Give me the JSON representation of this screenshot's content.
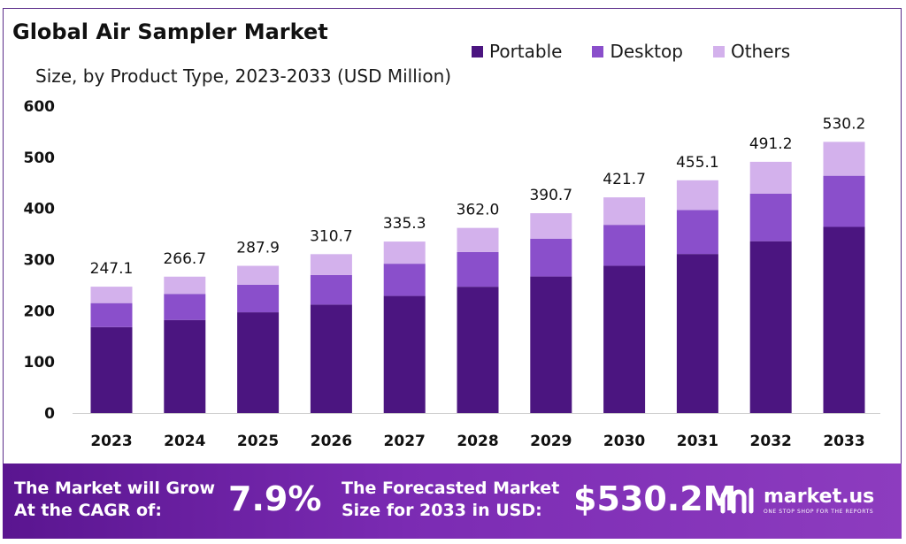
{
  "header": {
    "title": "Global Air Sampler Market",
    "subtitle": "Size, by Product Type, 2023-2033 (USD Million)"
  },
  "legend": [
    {
      "label": "Portable",
      "color": "#4b1580"
    },
    {
      "label": "Desktop",
      "color": "#8a4fcb"
    },
    {
      "label": "Others",
      "color": "#d3b1ec"
    }
  ],
  "chart_data": {
    "type": "bar",
    "stacked": true,
    "title": "Global Air Sampler Market",
    "subtitle": "Size, by Product Type, 2023-2033 (USD Million)",
    "categories": [
      "2023",
      "2024",
      "2025",
      "2026",
      "2027",
      "2028",
      "2029",
      "2030",
      "2031",
      "2032",
      "2033"
    ],
    "series": [
      {
        "name": "Portable",
        "color": "#4b1580",
        "values": [
          168,
          182,
          197,
          212,
          229,
          247,
          267,
          288,
          311,
          336,
          364
        ]
      },
      {
        "name": "Desktop",
        "color": "#8a4fcb",
        "values": [
          47,
          51,
          54,
          58,
          63,
          68,
          74,
          80,
          86,
          93,
          100
        ]
      },
      {
        "name": "Others",
        "color": "#d3b1ec",
        "values": [
          32.1,
          33.7,
          36.9,
          40.7,
          43.3,
          47.0,
          49.7,
          53.7,
          58.1,
          62.2,
          66.2
        ]
      }
    ],
    "totals": [
      "247.1",
      "266.7",
      "287.9",
      "310.7",
      "335.3",
      "362.0",
      "390.7",
      "421.7",
      "455.1",
      "491.2",
      "530.2"
    ],
    "yticks": [
      "0",
      "100",
      "200",
      "300",
      "400",
      "500",
      "600"
    ],
    "ylim": [
      0,
      600
    ],
    "xlabel": "",
    "ylabel": "",
    "grid": false,
    "legend_position": "top-right"
  },
  "banner": {
    "cagr_text_line1": "The Market will Grow",
    "cagr_text_line2": "At the CAGR of:",
    "cagr_value": "7.9%",
    "forecast_text_line1": "The Forecasted Market",
    "forecast_text_line2": "Size for 2033 in USD:",
    "forecast_value": "$530.2M",
    "brand_name": "market.us",
    "brand_tagline": "ONE STOP SHOP FOR THE REPORTS"
  }
}
